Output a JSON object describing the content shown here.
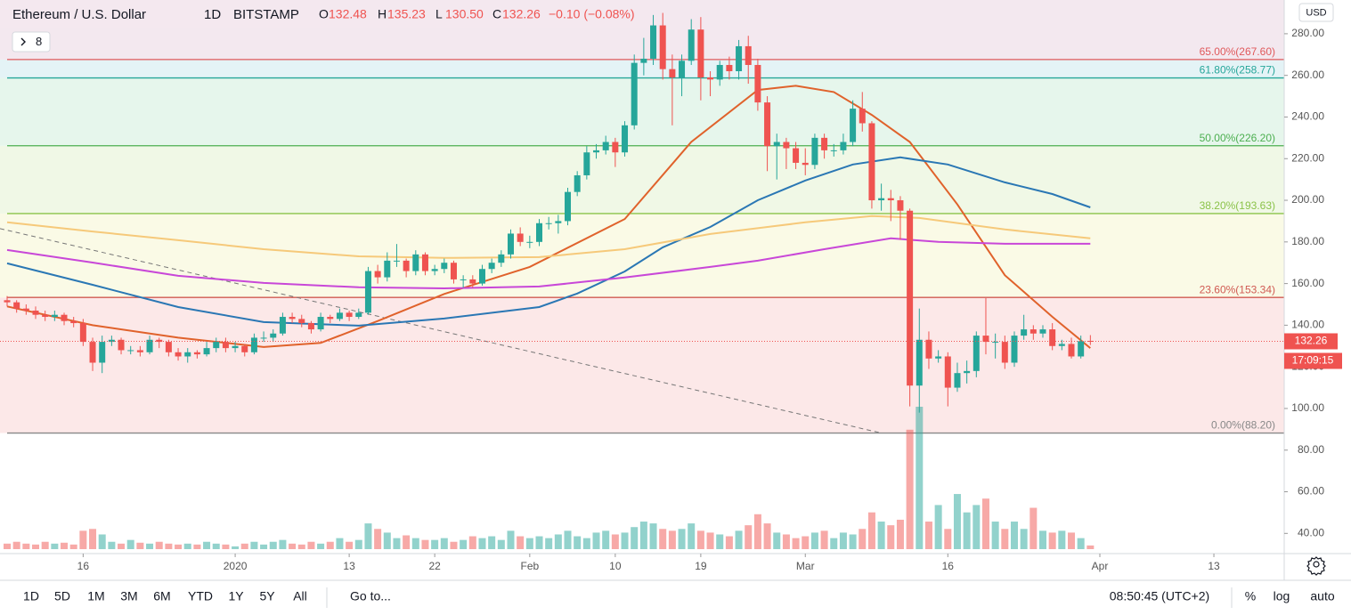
{
  "chart_data": {
    "type": "candlestick",
    "title": "Ethereum / U.S. Dollar",
    "interval": "1D",
    "exchange": "BITSTAMP",
    "legend_ohlc": [
      {
        "key": "O",
        "value": "132.48"
      },
      {
        "key": "H",
        "value": "135.23"
      },
      {
        "key": "L",
        "value": "130.50"
      },
      {
        "key": "C",
        "value": "132.26"
      }
    ],
    "change": "−0.10 (−0.08%)",
    "indicator_count": "8",
    "currency": "USD",
    "countdown": "17:09:15",
    "colors": {
      "up": "#26a69a",
      "down": "#ef5350"
    },
    "open": [
      152,
      151,
      148,
      147,
      145,
      144,
      145,
      142,
      141,
      132,
      122,
      132,
      133,
      128,
      128,
      127,
      133,
      132,
      127,
      125,
      127,
      126,
      129,
      132,
      129,
      130,
      127,
      134,
      134,
      136,
      144,
      143,
      141,
      138,
      144,
      143,
      146,
      144,
      146,
      166,
      163,
      171,
      171,
      166,
      174,
      166,
      167,
      170,
      162,
      162,
      160,
      167,
      170,
      174,
      184,
      180,
      180,
      189,
      189,
      190,
      204,
      212,
      223,
      224,
      228,
      223,
      236,
      266,
      268,
      284,
      263,
      259,
      267,
      282,
      259,
      258,
      265,
      262,
      274,
      265,
      247,
      226,
      228,
      225,
      218,
      217,
      230,
      224,
      224,
      228,
      244,
      237,
      200,
      201,
      200,
      195,
      111,
      133,
      124,
      125,
      110,
      117,
      118,
      135,
      132,
      132,
      122,
      135,
      138,
      136,
      138,
      130,
      131,
      125,
      132.48
    ],
    "high": [
      154,
      152,
      150,
      149,
      147,
      147,
      146,
      144,
      143,
      134,
      135,
      135,
      134,
      130,
      130,
      135,
      134,
      133,
      129,
      129,
      128,
      132,
      134,
      134,
      132,
      131,
      136,
      137,
      138,
      146,
      146,
      145,
      142,
      146,
      145,
      148,
      147,
      148,
      168,
      169,
      175,
      179,
      172,
      176,
      175,
      169,
      172,
      171,
      164,
      164,
      169,
      172,
      176,
      186,
      187,
      183,
      191,
      192,
      193,
      206,
      214,
      226,
      227,
      231,
      230,
      238,
      270,
      278,
      289,
      290,
      270,
      270,
      287,
      288,
      262,
      267,
      269,
      277,
      279,
      268,
      250,
      232,
      230,
      228,
      225,
      232,
      232,
      227,
      232,
      248,
      252,
      238,
      208,
      205,
      202,
      196,
      148,
      137,
      128,
      127,
      122,
      123,
      137,
      153,
      136,
      135,
      137,
      145,
      140,
      140,
      141,
      133,
      134,
      135,
      135.23
    ],
    "low": [
      149,
      146,
      145,
      143,
      142,
      142,
      140,
      139,
      130,
      118,
      117,
      130,
      126,
      126,
      125,
      126,
      129,
      125,
      123,
      122,
      124,
      125,
      127,
      127,
      127,
      125,
      126,
      132,
      132,
      135,
      141,
      139,
      136,
      137,
      141,
      142,
      142,
      143,
      145,
      160,
      161,
      168,
      163,
      164,
      164,
      164,
      165,
      160,
      158,
      158,
      159,
      165,
      168,
      172,
      178,
      177,
      178,
      186,
      184,
      188,
      202,
      210,
      220,
      222,
      216,
      221,
      234,
      260,
      265,
      258,
      236,
      250,
      265,
      248,
      250,
      255,
      258,
      258,
      256,
      243,
      214,
      210,
      215,
      215,
      212,
      215,
      220,
      221,
      222,
      226,
      233,
      196,
      195,
      190,
      181,
      101,
      98,
      119,
      122,
      101,
      108,
      112,
      115,
      126,
      124,
      119,
      120,
      133,
      133,
      134,
      128,
      128,
      124,
      124,
      130.5
    ],
    "close": [
      151,
      148,
      147,
      145,
      144,
      145,
      142,
      141,
      132,
      122,
      132,
      133,
      128,
      128,
      127,
      133,
      132,
      127,
      125,
      127,
      126,
      129,
      132,
      129,
      130,
      127,
      134,
      134,
      136,
      144,
      143,
      141,
      138,
      144,
      143,
      146,
      144,
      146,
      166,
      163,
      171,
      171,
      166,
      174,
      166,
      167,
      170,
      162,
      162,
      160,
      167,
      170,
      174,
      184,
      180,
      180,
      189,
      189,
      190,
      204,
      212,
      223,
      224,
      228,
      223,
      236,
      266,
      268,
      284,
      263,
      259,
      267,
      282,
      259,
      258,
      265,
      262,
      274,
      265,
      247,
      226,
      228,
      225,
      218,
      217,
      230,
      224,
      224,
      228,
      244,
      237,
      200,
      201,
      200,
      195,
      111,
      133,
      124,
      125,
      110,
      117,
      118,
      135,
      132,
      132,
      122,
      135,
      138,
      136,
      138,
      130,
      131,
      125,
      132.36,
      132.26
    ],
    "volume": [
      6,
      8,
      6,
      5,
      8,
      6,
      7,
      5,
      20,
      22,
      16,
      8,
      6,
      10,
      7,
      6,
      8,
      6,
      5,
      6,
      5,
      8,
      6,
      5,
      3,
      6,
      8,
      5,
      8,
      10,
      6,
      5,
      8,
      6,
      8,
      12,
      8,
      10,
      28,
      22,
      18,
      12,
      15,
      12,
      10,
      10,
      12,
      8,
      10,
      14,
      12,
      14,
      10,
      20,
      14,
      12,
      14,
      12,
      16,
      20,
      14,
      12,
      18,
      20,
      16,
      18,
      24,
      30,
      28,
      22,
      20,
      22,
      28,
      20,
      18,
      16,
      14,
      20,
      26,
      38,
      28,
      18,
      16,
      12,
      14,
      18,
      20,
      12,
      18,
      16,
      22,
      40,
      30,
      26,
      32,
      130,
      155,
      30,
      48,
      22,
      60,
      40,
      48,
      55,
      30,
      22,
      30,
      22,
      45,
      20,
      18,
      20,
      18,
      12,
      4
    ],
    "moving_averages": [
      {
        "color": "#e0622b",
        "x": [
          0,
          9,
          18,
          27,
          33,
          39,
          46,
          55,
          65,
          72,
          79,
          83,
          87,
          91,
          95,
          100,
          105,
          110,
          114
        ],
        "values": [
          149,
          140,
          134,
          129.5,
          131.5,
          142,
          155,
          168,
          191,
          228,
          253,
          255,
          252,
          241,
          228,
          198,
          164,
          144,
          129
        ]
      },
      {
        "color": "#2a77b4",
        "x": [
          0,
          9,
          18,
          27,
          37,
          46,
          56,
          60,
          65,
          69,
          74,
          79,
          84,
          89,
          94,
          99,
          105,
          110,
          114
        ],
        "values": [
          169.7,
          159.4,
          148.7,
          141.5,
          139.8,
          143.2,
          148.7,
          155.2,
          165.8,
          177.4,
          187.2,
          200,
          209.5,
          217.2,
          220.6,
          217.2,
          208.6,
          203,
          196.6
        ]
      },
      {
        "color": "#f6c97a",
        "x": [
          0,
          9,
          18,
          27,
          37,
          46,
          56,
          65,
          74,
          84,
          91,
          96,
          105,
          114
        ],
        "values": [
          189.4,
          185,
          180.8,
          176.5,
          173.1,
          172.3,
          172.7,
          176.5,
          183.8,
          189.4,
          192.4,
          191.5,
          186,
          181.7
        ]
      },
      {
        "color": "#c847d8",
        "x": [
          0,
          9,
          18,
          27,
          37,
          46,
          56,
          65,
          74,
          79,
          86,
          93,
          98,
          105,
          114
        ],
        "values": [
          176.1,
          170.1,
          163.7,
          160.3,
          158.2,
          157.7,
          158.6,
          162.9,
          168,
          171,
          176.5,
          181.7,
          180,
          179.1,
          179.1
        ]
      }
    ],
    "trendline": {
      "color": "#777777",
      "x": [
        -0.75,
        92
      ],
      "values": [
        186.4,
        88.2
      ]
    },
    "fib_levels": [
      {
        "label": "0.00%(88.20)",
        "value": 88.2,
        "color": "#888888",
        "fill": "#fce8e8"
      },
      {
        "label": "23.60%(153.34)",
        "value": 153.34,
        "color": "#d05a52",
        "fill": "#fafae6"
      },
      {
        "label": "38.20%(193.63)",
        "value": 193.63,
        "color": "#8bc34a",
        "fill": "#f0f8e6"
      },
      {
        "label": "50.00%(226.20)",
        "value": 226.2,
        "color": "#4caf50",
        "fill": "#e6f6ec"
      },
      {
        "label": "61.80%(258.77)",
        "value": 258.77,
        "color": "#26a69a",
        "fill": "#e4f3f6"
      },
      {
        "label": "65.00%(267.60)",
        "value": 267.6,
        "color": "#e0595c",
        "fill": "#f3e8ef"
      }
    ],
    "xlim": [
      -0.75,
      134.4
    ],
    "xticks": [
      {
        "value": 8,
        "label": "16"
      },
      {
        "value": 24,
        "label": "2020"
      },
      {
        "value": 36,
        "label": "13"
      },
      {
        "value": 45,
        "label": "22"
      },
      {
        "value": 55,
        "label": "Feb"
      },
      {
        "value": 64,
        "label": "10"
      },
      {
        "value": 73,
        "label": "19"
      },
      {
        "value": 84,
        "label": "Mar"
      },
      {
        "value": 99,
        "label": "16"
      },
      {
        "value": 115,
        "label": "Apr"
      },
      {
        "value": 127,
        "label": "13"
      }
    ],
    "ylim": [
      30.3,
      296.2
    ],
    "yticks": [
      {
        "value": 40,
        "label": "40.00"
      },
      {
        "value": 60,
        "label": "60.00"
      },
      {
        "value": 80,
        "label": "80.00"
      },
      {
        "value": 100,
        "label": "100.00"
      },
      {
        "value": 120,
        "label": "120.00"
      },
      {
        "value": 140,
        "label": "140.00"
      },
      {
        "value": 160,
        "label": "160.00"
      },
      {
        "value": 180,
        "label": "180.00"
      },
      {
        "value": 200,
        "label": "200.00"
      },
      {
        "value": 220,
        "label": "220.00"
      },
      {
        "value": 240,
        "label": "240.00"
      },
      {
        "value": 260,
        "label": "260.00"
      },
      {
        "value": 280,
        "label": "280.00"
      }
    ]
  },
  "toolbar": {
    "ranges": [
      "1D",
      "5D",
      "1M",
      "3M",
      "6M",
      "YTD",
      "1Y",
      "5Y",
      "All"
    ],
    "goto": "Go to...",
    "time": "08:50:45 (UTC+2)",
    "scale_options": [
      "%",
      "log",
      "auto"
    ]
  }
}
